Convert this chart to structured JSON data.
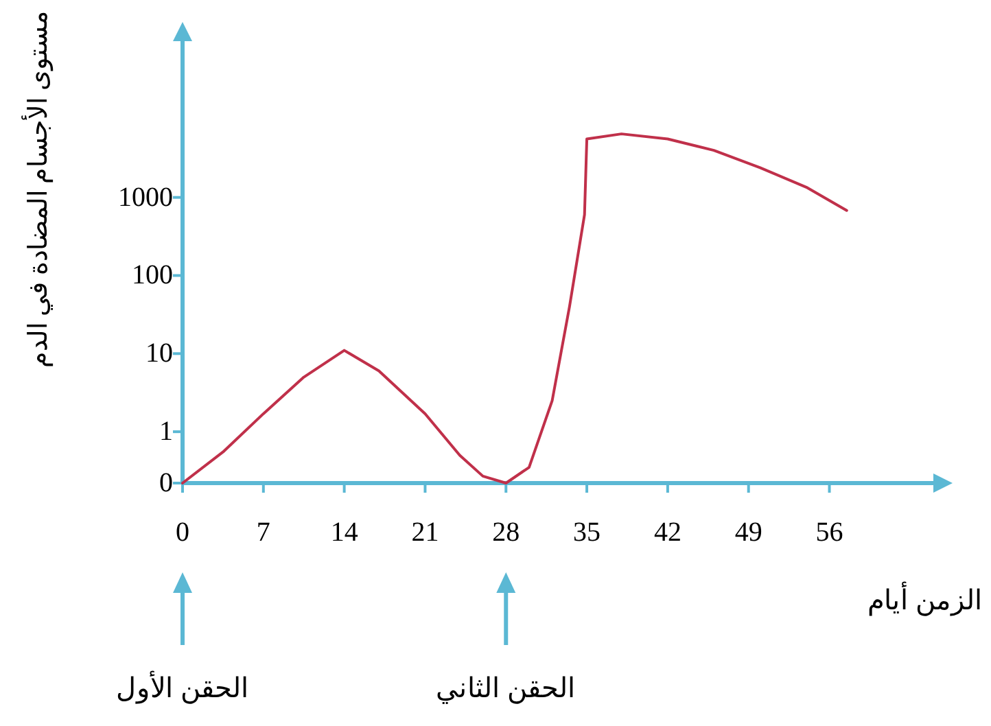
{
  "chart_data": {
    "type": "line",
    "xlabel": "الزمن أيام",
    "ylabel": "مستوى الأجسام المضادة في الدم",
    "x": [
      0,
      3.5,
      7,
      10.5,
      14,
      17,
      21,
      24,
      26,
      28,
      30,
      32,
      33.5,
      34.8,
      35,
      38,
      42,
      46,
      50,
      54,
      57.5
    ],
    "series": [
      {
        "color": "#c0304a",
        "values": [
          0.22,
          0.55,
          1.7,
          5,
          11,
          6,
          1.7,
          0.5,
          0.27,
          0.22,
          0.35,
          2.5,
          40,
          600,
          5600,
          6500,
          5600,
          4000,
          2400,
          1350,
          680
        ]
      }
    ],
    "log": true,
    "xlim": [
      0,
      65
    ],
    "xticks": [
      0,
      7,
      14,
      21,
      28,
      35,
      42,
      49,
      56
    ],
    "ylim": [
      0.22,
      100000
    ],
    "yticks": [
      {
        "value": 0.22,
        "label": "0"
      },
      1,
      10,
      100,
      1000
    ],
    "grid": false,
    "marker": "none",
    "line_style": "solid",
    "annotations": [
      {
        "text": "الحقن الأول",
        "x": 0
      },
      {
        "text": "الحقن الثاني",
        "x": 28
      }
    ]
  }
}
